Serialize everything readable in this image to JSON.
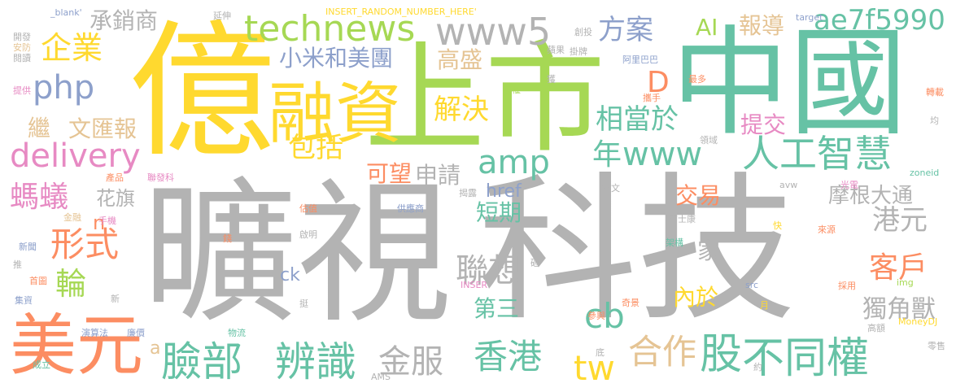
{
  "words": [
    {
      "text": "曠視",
      "color": "#b3b3b3"
    },
    {
      "text": "科技",
      "color": "#b3b3b3"
    },
    {
      "text": "億",
      "color": "#ffd92f"
    },
    {
      "text": "中國",
      "color": "#66c2a5"
    },
    {
      "text": "上市",
      "color": "#a6d854"
    },
    {
      "text": "融資",
      "color": "#ffd92f"
    },
    {
      "text": "美元",
      "color": "#fc8d62"
    },
    {
      "text": "technews",
      "color": "#a6d854"
    },
    {
      "text": "www5",
      "color": "#b3b3b3"
    },
    {
      "text": "臉部",
      "color": "#66c2a5"
    },
    {
      "text": "辨識",
      "color": "#66c2a5"
    },
    {
      "text": "不同權",
      "color": "#66c2a5"
    },
    {
      "text": "股",
      "color": "#66c2a5"
    },
    {
      "text": "香港",
      "color": "#66c2a5"
    },
    {
      "text": "金服",
      "color": "#b3b3b3"
    },
    {
      "text": "合作",
      "color": "#e5c494"
    },
    {
      "text": "tw",
      "color": "#ffd92f"
    },
    {
      "text": "年",
      "color": "#66c2a5"
    },
    {
      "text": "www",
      "color": "#66c2a5"
    },
    {
      "text": "人工智慧",
      "color": "#66c2a5"
    },
    {
      "text": "delivery",
      "color": "#e78ac3"
    },
    {
      "text": "php",
      "color": "#8da0cb"
    },
    {
      "text": "企業",
      "color": "#ffd92f"
    },
    {
      "text": "amp",
      "color": "#66c2a5"
    },
    {
      "text": "包括",
      "color": "#ffd92f"
    },
    {
      "text": "方案",
      "color": "#8da0cb"
    },
    {
      "text": "ae7f5990",
      "color": "#66c2a5"
    },
    {
      "text": "報導",
      "color": "#e5c494"
    },
    {
      "text": "AI",
      "color": "#a6d854"
    },
    {
      "text": "相當於",
      "color": "#66c2a5"
    },
    {
      "text": "解決",
      "color": "#ffd92f"
    },
    {
      "text": "提交",
      "color": "#e78ac3"
    },
    {
      "text": "D",
      "color": "#fc8d62"
    },
    {
      "text": "高盛",
      "color": "#e5c494"
    },
    {
      "text": "小米和美團",
      "color": "#8da0cb"
    },
    {
      "text": "承銷商",
      "color": "#b3b3b3"
    },
    {
      "text": "文匯報",
      "color": "#e5c494"
    },
    {
      "text": "繼",
      "color": "#e5c494"
    },
    {
      "text": "螞蟻",
      "color": "#e78ac3"
    },
    {
      "text": "花旗",
      "color": "#b3b3b3"
    },
    {
      "text": "形式",
      "color": "#fc8d62"
    },
    {
      "text": "輪",
      "color": "#a6d854"
    },
    {
      "text": "n",
      "color": "#fc8d62"
    },
    {
      "text": "聯想",
      "color": "#b3b3b3"
    },
    {
      "text": "第三",
      "color": "#66c2a5"
    },
    {
      "text": "cb",
      "color": "#66c2a5"
    },
    {
      "text": "可望",
      "color": "#fc8d62"
    },
    {
      "text": "申請",
      "color": "#b3b3b3"
    },
    {
      "text": "href",
      "color": "#8da0cb"
    },
    {
      "text": "短期",
      "color": "#66c2a5"
    },
    {
      "text": "交易",
      "color": "#fc8d62"
    },
    {
      "text": "摩根大通",
      "color": "#b3b3b3"
    },
    {
      "text": "港元",
      "color": "#b3b3b3"
    },
    {
      "text": "家",
      "color": "#b3b3b3"
    },
    {
      "text": "客戶",
      "color": "#fc8d62"
    },
    {
      "text": "獨角獸",
      "color": "#b3b3b3"
    },
    {
      "text": "內於",
      "color": "#ffd92f"
    },
    {
      "text": "ck",
      "color": "#8da0cb"
    },
    {
      "text": "a",
      "color": "#e5c494"
    },
    {
      "text": "_blank'",
      "color": "#8da0cb"
    },
    {
      "text": "INSERT_RANDOM_NUMBER_HERE'",
      "color": "#ffd92f"
    },
    {
      "text": "延伸",
      "color": "#b3b3b3"
    },
    {
      "text": "創投",
      "color": "#b3b3b3"
    },
    {
      "text": "target",
      "color": "#8da0cb"
    },
    {
      "text": "蘋果",
      "color": "#b3b3b3"
    },
    {
      "text": "掛牌",
      "color": "#b3b3b3"
    },
    {
      "text": "阿里巴巴",
      "color": "#8da0cb"
    },
    {
      "text": "開發",
      "color": "#b3b3b3"
    },
    {
      "text": "安防",
      "color": "#e5c494"
    },
    {
      "text": "閱讀",
      "color": "#b3b3b3"
    },
    {
      "text": "提供",
      "color": "#e78ac3"
    },
    {
      "text": "授權",
      "color": "#a6d854"
    },
    {
      "text": "獲",
      "color": "#b3b3b3"
    },
    {
      "text": "最多",
      "color": "#fc8d62"
    },
    {
      "text": "轉載",
      "color": "#fc8d62"
    },
    {
      "text": "攜手",
      "color": "#fc8d62"
    },
    {
      "text": "均",
      "color": "#b3b3b3"
    },
    {
      "text": "領域",
      "color": "#b3b3b3"
    },
    {
      "text": "avw",
      "color": "#b3b3b3"
    },
    {
      "text": "zoneid",
      "color": "#66c2a5"
    },
    {
      "text": "產品",
      "color": "#fc8d62"
    },
    {
      "text": "聯發科",
      "color": "#e78ac3"
    },
    {
      "text": "揭露",
      "color": "#b3b3b3"
    },
    {
      "text": "本文",
      "color": "#b3b3b3"
    },
    {
      "text": "光電",
      "color": "#e78ac3"
    },
    {
      "text": "金融",
      "color": "#e5c494"
    },
    {
      "text": "手機",
      "color": "#e78ac3"
    },
    {
      "text": "估值",
      "color": "#fc8d62"
    },
    {
      "text": "供應商",
      "color": "#8da0cb"
    },
    {
      "text": "富士康",
      "color": "#b3b3b3"
    },
    {
      "text": "快",
      "color": "#ffd92f"
    },
    {
      "text": "來源",
      "color": "#fc8d62"
    },
    {
      "text": "新聞",
      "color": "#8da0cb"
    },
    {
      "text": "錢",
      "color": "#fc8d62"
    },
    {
      "text": "啟明",
      "color": "#b3b3b3"
    },
    {
      "text": "架構",
      "color": "#66c2a5"
    },
    {
      "text": "推",
      "color": "#b3b3b3"
    },
    {
      "text": "首圖",
      "color": "#fc8d62"
    },
    {
      "text": "INSER",
      "color": "#e78ac3"
    },
    {
      "text": "src",
      "color": "#8da0cb"
    },
    {
      "text": "採用",
      "color": "#fc8d62"
    },
    {
      "text": "砸",
      "color": "#b3b3b3"
    },
    {
      "text": "img",
      "color": "#a6d854"
    },
    {
      "text": "集資",
      "color": "#8da0cb"
    },
    {
      "text": "新",
      "color": "#b3b3b3"
    },
    {
      "text": "挺",
      "color": "#b3b3b3"
    },
    {
      "text": "奇景",
      "color": "#fc8d62"
    },
    {
      "text": "月",
      "color": "#ffd92f"
    },
    {
      "text": "MoneyDJ",
      "color": "#ffd92f"
    },
    {
      "text": "演算法",
      "color": "#8da0cb"
    },
    {
      "text": "廉價",
      "color": "#8da0cb"
    },
    {
      "text": "物流",
      "color": "#66c2a5"
    },
    {
      "text": "參與",
      "color": "#fc8d62"
    },
    {
      "text": "高額",
      "color": "#b3b3b3"
    },
    {
      "text": "零售",
      "color": "#b3b3b3"
    },
    {
      "text": "成立",
      "color": "#66c2a5"
    },
    {
      "text": "底",
      "color": "#b3b3b3"
    },
    {
      "text": "AMS",
      "color": "#b3b3b3"
    },
    {
      "text": "約",
      "color": "#b3b3b3"
    }
  ]
}
